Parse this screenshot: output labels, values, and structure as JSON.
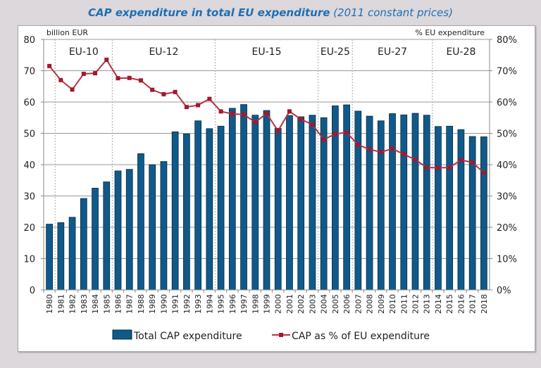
{
  "chart_data": {
    "type": "bar+line",
    "title": "CAP expenditure in total EU expenditure",
    "subtitle": "(2011 constant prices)",
    "ylabel_left": "billion EUR",
    "ylabel_right": "% EU expenditure",
    "ylim_left": [
      0,
      80
    ],
    "ylim_right": [
      0,
      80
    ],
    "yticks_left": [
      "0",
      "10",
      "20",
      "30",
      "40",
      "50",
      "60",
      "70",
      "80"
    ],
    "yticks_right": [
      "0%",
      "10%",
      "20%",
      "30%",
      "40%",
      "50%",
      "60%",
      "70%",
      "80%"
    ],
    "grid": true,
    "legend_placement": "bottom",
    "categories": [
      "1980",
      "1981",
      "1982",
      "1983",
      "1984",
      "1985",
      "1986",
      "1987",
      "1988",
      "1989",
      "1990",
      "1991",
      "1992",
      "1993",
      "1994",
      "1995",
      "1996",
      "1997",
      "1998",
      "1999",
      "2000",
      "2001",
      "2002",
      "2003",
      "2004",
      "2005",
      "2006",
      "2007",
      "2008",
      "2009",
      "2010",
      "2011",
      "2012",
      "2013",
      "2014",
      "2015",
      "2016",
      "2017",
      "2018"
    ],
    "eras": [
      {
        "label": "EU-10",
        "from": "1981",
        "to": "1985"
      },
      {
        "label": "EU-12",
        "from": "1986",
        "to": "1994"
      },
      {
        "label": "EU-15",
        "from": "1995",
        "to": "2003"
      },
      {
        "label": "EU-25",
        "from": "2004",
        "to": "2006"
      },
      {
        "label": "EU-27",
        "from": "2007",
        "to": "2013"
      },
      {
        "label": "EU-28",
        "from": "2014",
        "to": "2018"
      }
    ],
    "series": [
      {
        "name": "Total CAP expenditure",
        "type": "bar",
        "axis": "left",
        "color": "#0f5a8a",
        "values": [
          21,
          21.5,
          23.2,
          29.2,
          32.5,
          34.5,
          38,
          38.5,
          43.5,
          40,
          41,
          50.5,
          49.8,
          54,
          51.5,
          52.3,
          58,
          59.2,
          55.8,
          57.3,
          51.6,
          55.7,
          55.3,
          55.8,
          55,
          58.8,
          59.1,
          57.1,
          55.5,
          54,
          56.3,
          55.9,
          56.4,
          55.8,
          52.2,
          52.3,
          51.2,
          49,
          48.9
        ]
      },
      {
        "name": "CAP as % of EU expenditure",
        "type": "line",
        "axis": "right",
        "color": "#b53344",
        "values": [
          71.5,
          67,
          64,
          69,
          69.2,
          73.5,
          67.6,
          67.7,
          66.9,
          63.9,
          62.5,
          63.2,
          58.4,
          59,
          61,
          57,
          56.2,
          56,
          53.6,
          56.3,
          50.8,
          57,
          54.5,
          52.8,
          48,
          49.8,
          50.3,
          46.3,
          44.9,
          44,
          45.1,
          43.3,
          41.6,
          39.1,
          39,
          39.1,
          41.5,
          40.7,
          37.4
        ]
      }
    ]
  }
}
